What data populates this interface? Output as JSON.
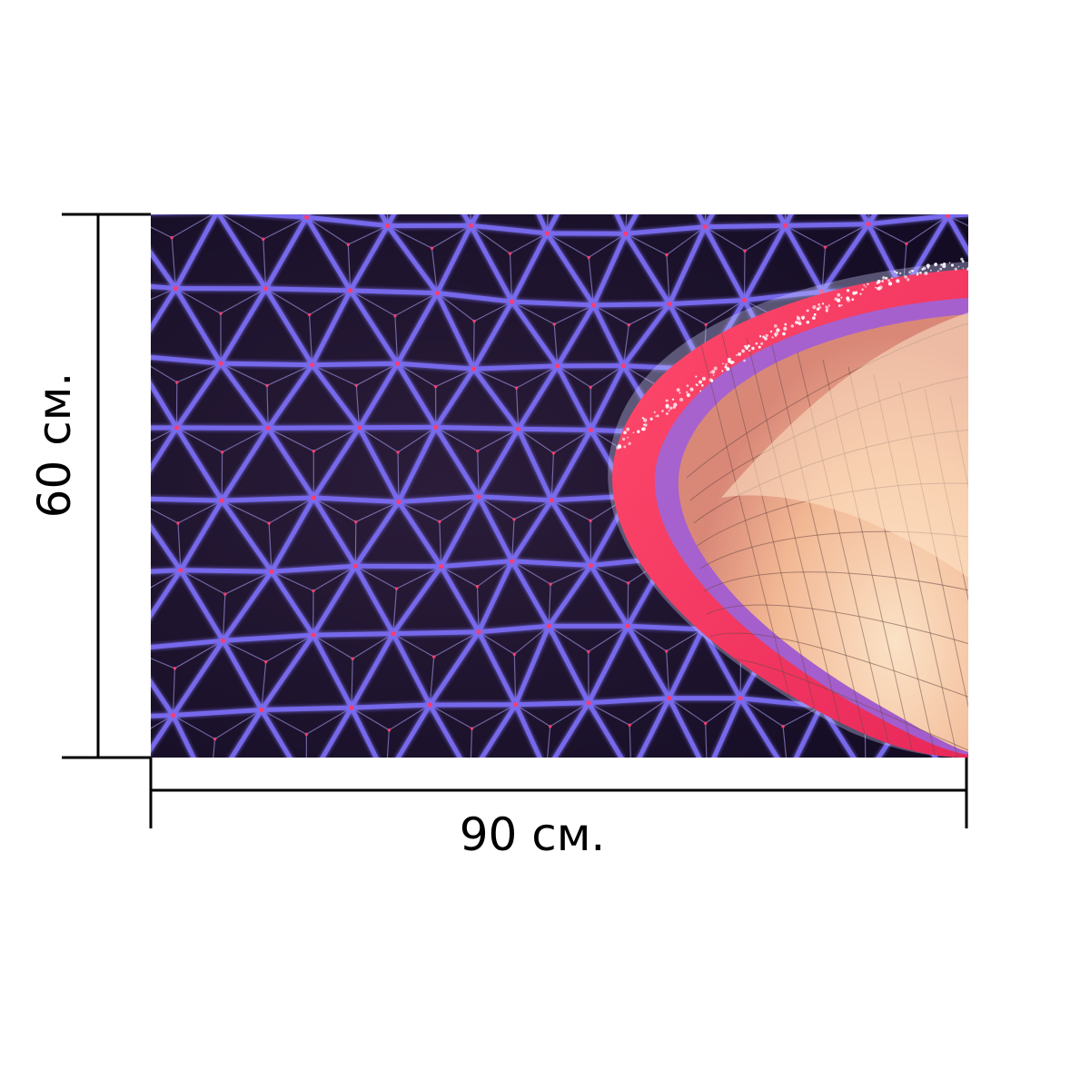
{
  "product": {
    "width_label": "90 см.",
    "height_label": "60 см.",
    "photo_description_icon": "illuminated-glass-dome-photo"
  },
  "colors": {
    "lattice": "#7a6cf0",
    "lattice_glow": "#b3a8ff",
    "dome_dark": "#1a1230",
    "ring_red": "#f0305a",
    "ring_pink": "#ff7a9a",
    "bowl_light": "#f6c9a8",
    "bowl_mid": "#e9a98a",
    "led_red": "#ff3b6b",
    "dimension_line": "#000000"
  }
}
